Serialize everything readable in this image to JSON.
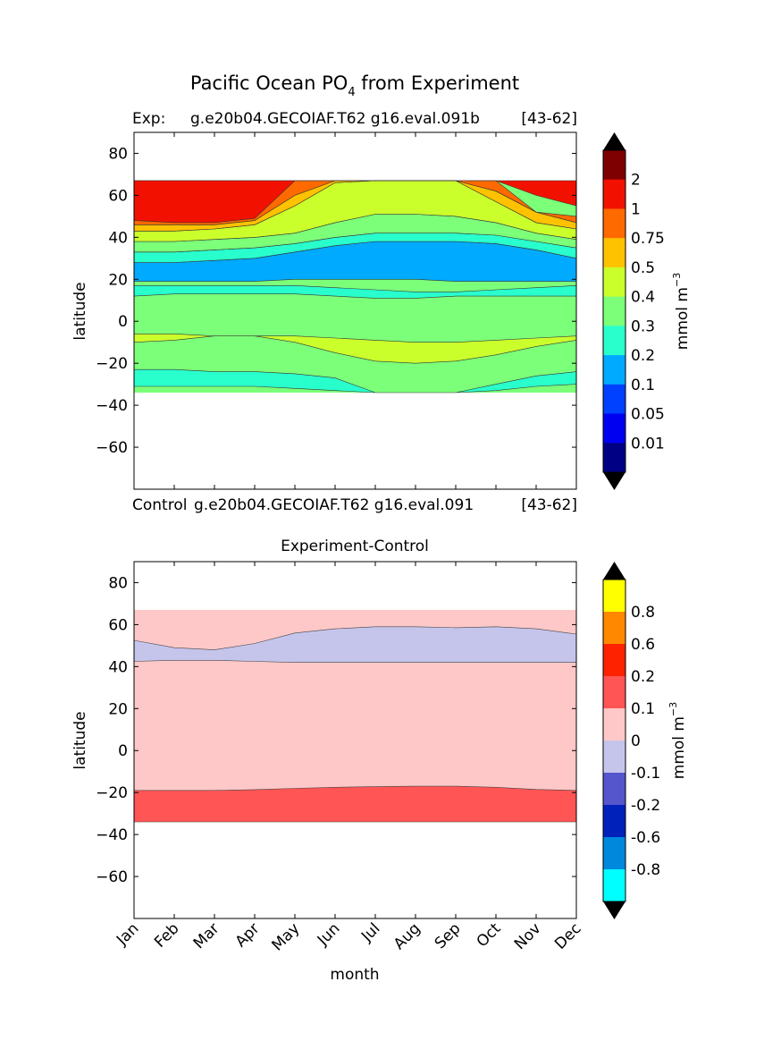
{
  "figure": {
    "title_main": "Pacific Ocean PO",
    "title_sub": "4",
    "title_tail": " from Experiment"
  },
  "chart_data": [
    {
      "type": "contour",
      "panel": "top",
      "exp_label": "Exp:",
      "exp_name": "g.e20b04.GECOIAF.T62 g16.eval.091b",
      "range_label": "[43-62]",
      "footer_label": "Control",
      "footer_name": "g.e20b04.GECOIAF.T62 g16.eval.091",
      "footer_range": "[43-62]",
      "ylabel": "latitude",
      "xlabel": "",
      "ylim": [
        -80,
        90
      ],
      "yticks": [
        80,
        60,
        40,
        20,
        0,
        -20,
        -40,
        -60
      ],
      "ytick_labels": [
        "80",
        "60",
        "40",
        "20",
        "0",
        "−20",
        "−40",
        "−60"
      ],
      "xlim": [
        0,
        11
      ],
      "data_lat_range": [
        -34,
        67
      ],
      "colorbar": {
        "unit": "mmol m",
        "unit_exp": "−3",
        "levels": [
          "2",
          "1",
          "0.75",
          "0.5",
          "0.4",
          "0.3",
          "0.2",
          "0.1",
          "0.05",
          "0.01"
        ],
        "colors": [
          "#7f0000",
          "#f21100",
          "#ff6a00",
          "#fec200",
          "#cbff2c",
          "#7cff79",
          "#29ffcd",
          "#00aaff",
          "#0040ff",
          "#0000f1",
          "#000084"
        ]
      },
      "bands_lat_by_month": [
        {
          "name": "lower_strip_0.2-0.3",
          "color": "#29ffcd",
          "top": [
            -23,
            -23,
            -24,
            -24,
            -25,
            -27,
            -34,
            -34,
            -34,
            -30,
            -26,
            -24
          ],
          "bottom": [
            -31,
            -31,
            -31,
            -31,
            -32,
            -33,
            -34,
            -34,
            -34,
            -33,
            -31,
            -30
          ]
        },
        {
          "name": "band_0.3-0.4_south",
          "color": "#cbff2c",
          "top": [
            -6,
            -6,
            -7,
            -7,
            -7,
            -8,
            -9,
            -10,
            -10,
            -9,
            -8,
            -7
          ],
          "bottom": [
            -10,
            -9,
            -7,
            -7,
            -10,
            -15,
            -19,
            -20,
            -19,
            -16,
            -12,
            -9
          ]
        },
        {
          "name": "band_0.2-0.3_tropics",
          "color": "#29ffcd",
          "top": [
            17,
            17,
            17,
            17,
            17,
            16,
            15,
            14,
            14,
            15,
            16,
            17
          ],
          "bottom": [
            12,
            13,
            13,
            13,
            13,
            12,
            11,
            11,
            12,
            12,
            12,
            12
          ]
        },
        {
          "name": "band_0.1-0.2_subtropics",
          "color": "#00aaff",
          "top": [
            28,
            28,
            29,
            30,
            33,
            36,
            38,
            38,
            38,
            37,
            34,
            30
          ],
          "bottom": [
            19,
            19,
            19,
            19,
            20,
            20,
            20,
            20,
            19,
            19,
            19,
            19
          ]
        },
        {
          "name": "band_0.2-0.3_north",
          "color": "#29ffcd",
          "top": [
            33,
            33,
            34,
            35,
            37,
            40,
            42,
            42,
            42,
            41,
            38,
            35
          ],
          "bottom": [
            28,
            28,
            29,
            30,
            33,
            36,
            38,
            38,
            38,
            37,
            34,
            30
          ]
        },
        {
          "name": "band_0.3-0.4_north",
          "color": "#7cff79",
          "top": [
            38,
            38,
            39,
            40,
            42,
            47,
            51,
            51,
            50,
            47,
            42,
            39
          ],
          "bottom": [
            33,
            33,
            34,
            35,
            37,
            40,
            42,
            42,
            42,
            41,
            38,
            35
          ]
        },
        {
          "name": "band_0.4-0.5",
          "color": "#cbff2c",
          "top": [
            43,
            43,
            44,
            46,
            55,
            66,
            67,
            67,
            67,
            57,
            47,
            44
          ],
          "bottom": [
            38,
            38,
            39,
            40,
            42,
            47,
            51,
            51,
            50,
            47,
            42,
            39
          ]
        },
        {
          "name": "band_0.5-0.75",
          "color": "#fec200",
          "top": [
            46,
            46,
            46,
            48,
            60,
            67,
            67,
            67,
            67,
            62,
            52,
            47
          ],
          "bottom": [
            43,
            43,
            44,
            46,
            55,
            66,
            67,
            67,
            67,
            57,
            47,
            44
          ]
        },
        {
          "name": "band_0.75-1",
          "color": "#ff6a00",
          "top": [
            67,
            67,
            67,
            67,
            67,
            67,
            67,
            67,
            67,
            67,
            52,
            50
          ],
          "bottom": [
            46,
            46,
            46,
            48,
            60,
            67,
            67,
            67,
            67,
            62,
            52,
            47
          ]
        },
        {
          "name": "band_1-2",
          "color": "#f21100",
          "top": [
            67,
            67,
            67,
            67,
            67,
            67,
            67,
            67,
            67,
            67,
            67,
            67
          ],
          "bottom": [
            48,
            47,
            47,
            49,
            67,
            67,
            67,
            67,
            67,
            67,
            60,
            55
          ]
        }
      ]
    },
    {
      "type": "contour",
      "panel": "bottom",
      "title": "Experiment-Control",
      "ylabel": "latitude",
      "xlabel": "month",
      "ylim": [
        -80,
        90
      ],
      "yticks": [
        80,
        60,
        40,
        20,
        0,
        -20,
        -40,
        -60
      ],
      "ytick_labels": [
        "80",
        "60",
        "40",
        "20",
        "0",
        "−20",
        "−40",
        "−60"
      ],
      "xticks": [
        "Jan",
        "Feb",
        "Mar",
        "Apr",
        "May",
        "Jun",
        "Jul",
        "Aug",
        "Sep",
        "Oct",
        "Nov",
        "Dec"
      ],
      "xlim": [
        0,
        11
      ],
      "data_lat_range": [
        -34,
        67
      ],
      "colorbar": {
        "unit": "mmol m",
        "unit_exp": "−3",
        "levels": [
          "0.8",
          "0.6",
          "0.2",
          "0.1",
          "0",
          "-0.1",
          "-0.2",
          "-0.6",
          "-0.8"
        ],
        "colors": [
          "#ffff00",
          "#ff8800",
          "#ff2200",
          "#ff5555",
          "#ffc8c8",
          "#c5c5ec",
          "#5555cc",
          "#0022bb",
          "#0088dd",
          "#00ffff"
        ]
      },
      "regions": [
        {
          "name": "positive_0_to_0.1",
          "color": "#ffc8c8",
          "lat_top": 67,
          "lat_bottom": -34
        },
        {
          "name": "positive_0.1_to_0.2_south",
          "color": "#ff5555",
          "top": [
            -19,
            -19,
            -19,
            -18.6,
            -18,
            -17.5,
            -17.2,
            -17,
            -17,
            -17.5,
            -18.5,
            -19
          ],
          "bottom": [
            -34,
            -34,
            -34,
            -34,
            -34,
            -34,
            -34,
            -34,
            -34,
            -34,
            -34,
            -34
          ]
        },
        {
          "name": "negative_-0.1_to_0_north",
          "color": "#c5c5ec",
          "top": [
            52.5,
            49,
            48,
            51,
            56,
            58,
            59,
            59,
            58.5,
            59,
            58,
            55.5
          ],
          "bottom": [
            42.5,
            43,
            43,
            42.5,
            42,
            42,
            42,
            42,
            42,
            42,
            42,
            42
          ]
        }
      ]
    }
  ]
}
